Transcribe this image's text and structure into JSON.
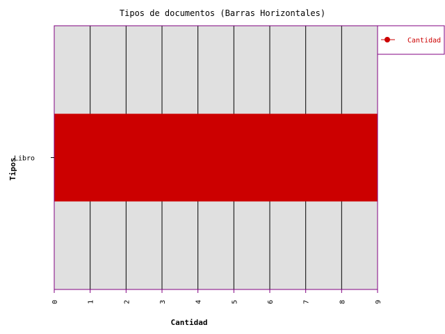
{
  "chart_data": {
    "type": "bar",
    "orientation": "horizontal",
    "title": "Tipos de documentos (Barras Horizontales)",
    "xlabel": "Cantidad",
    "ylabel": "Tipos",
    "categories": [
      "Libro"
    ],
    "series": [
      {
        "name": "Cantidad",
        "values": [
          9
        ]
      }
    ],
    "xlim": [
      0,
      9
    ],
    "x_ticks": [
      0,
      1,
      2,
      3,
      4,
      5,
      6,
      7,
      8,
      9
    ],
    "grid": "vertical",
    "legend_position": "top-right",
    "colors": {
      "bar": "#cc0000",
      "plot_background": "#e0e0e0",
      "plot_border": "#800080",
      "grid": "#000000",
      "legend_text": "#cc0000"
    }
  }
}
